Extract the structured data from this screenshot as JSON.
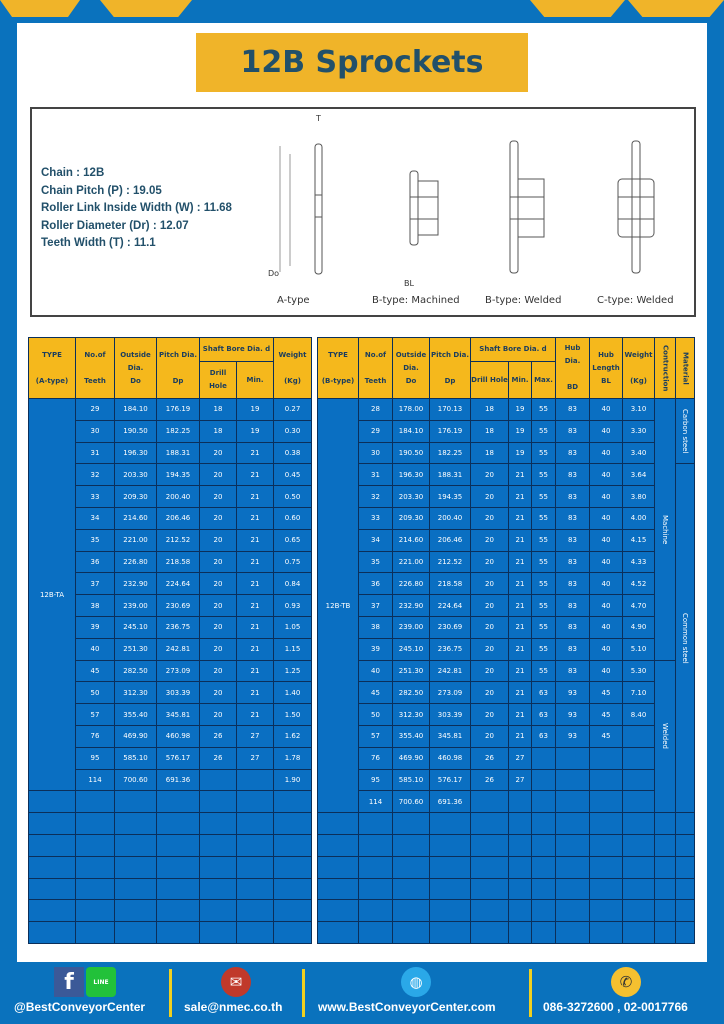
{
  "title": "12B Sprockets",
  "specs": [
    "Chain  :  12B",
    "Chain Pitch (P)  :  19.05",
    "Roller Link Inside Width (W) : 11.68",
    "Roller Diameter (Dr)  : 12.07",
    "Teeth Width (T)  :  11.1"
  ],
  "diagram_labels": [
    "A-type",
    "B-type: Machined",
    "B-type: Welded",
    "C-type: Welded"
  ],
  "dim_labels": {
    "t": "T",
    "do": "Do",
    "dp": "Dp",
    "d": "d",
    "bd": "BD",
    "bl": "BL"
  },
  "tableA": {
    "headers": {
      "type": "TYPE",
      "type_sub": "(A-type)",
      "teeth": "No.of",
      "teeth_sub": "Teeth",
      "do": "Outside",
      "do_sub": "Dia.",
      "do_sub2": "Do",
      "dp": "Pitch Dia.",
      "dp_sub": "Dp",
      "shaft": "Shaft Bore Dia. d",
      "drill": "Drill Hole",
      "min": "Min.",
      "weight": "Weight",
      "weight_sub": "(Kg)"
    },
    "type_value": "12B-TA",
    "rows": [
      [
        "29",
        "184.10",
        "176.19",
        "18",
        "19",
        "0.27"
      ],
      [
        "30",
        "190.50",
        "182.25",
        "18",
        "19",
        "0.30"
      ],
      [
        "31",
        "196.30",
        "188.31",
        "20",
        "21",
        "0.38"
      ],
      [
        "32",
        "203.30",
        "194.35",
        "20",
        "21",
        "0.45"
      ],
      [
        "33",
        "209.30",
        "200.40",
        "20",
        "21",
        "0.50"
      ],
      [
        "34",
        "214.60",
        "206.46",
        "20",
        "21",
        "0.60"
      ],
      [
        "35",
        "221.00",
        "212.52",
        "20",
        "21",
        "0.65"
      ],
      [
        "36",
        "226.80",
        "218.58",
        "20",
        "21",
        "0.75"
      ],
      [
        "37",
        "232.90",
        "224.64",
        "20",
        "21",
        "0.84"
      ],
      [
        "38",
        "239.00",
        "230.69",
        "20",
        "21",
        "0.93"
      ],
      [
        "39",
        "245.10",
        "236.75",
        "20",
        "21",
        "1.05"
      ],
      [
        "40",
        "251.30",
        "242.81",
        "20",
        "21",
        "1.15"
      ],
      [
        "45",
        "282.50",
        "273.09",
        "20",
        "21",
        "1.25"
      ],
      [
        "50",
        "312.30",
        "303.39",
        "20",
        "21",
        "1.40"
      ],
      [
        "57",
        "355.40",
        "345.81",
        "20",
        "21",
        "1.50"
      ],
      [
        "76",
        "469.90",
        "460.98",
        "26",
        "27",
        "1.62"
      ],
      [
        "95",
        "585.10",
        "576.17",
        "26",
        "27",
        "1.78"
      ],
      [
        "114",
        "700.60",
        "691.36",
        "",
        "",
        "1.90"
      ]
    ]
  },
  "tableB": {
    "headers": {
      "type": "TYPE",
      "type_sub": "(B-type)",
      "teeth": "No.of",
      "teeth_sub": "Teeth",
      "do": "Outside",
      "do_sub": "Dia.",
      "do_sub2": "Do",
      "dp": "Pitch Dia.",
      "dp_sub": "Dp",
      "shaft": "Shaft Bore Dia. d",
      "drill": "Drill Hole",
      "min": "Min.",
      "max": "Max.",
      "bd": "Hub Dia.",
      "bd_sub": "BD",
      "bl": "Hub",
      "bl_sub": "Length",
      "bl_sub2": "BL",
      "weight": "Weight",
      "weight_sub": "(Kg)",
      "construction": "Contruction",
      "material": "Material"
    },
    "type_value": "12B-TB",
    "construction": [
      {
        "label": "Machine",
        "rows": 12
      },
      {
        "label": "Welded",
        "rows": 7
      }
    ],
    "material": [
      {
        "label": "Carbon steel",
        "rows": 3
      },
      {
        "label": "Common steel",
        "rows": 16
      }
    ],
    "rows": [
      [
        "28",
        "178.00",
        "170.13",
        "18",
        "19",
        "55",
        "83",
        "40",
        "3.10"
      ],
      [
        "29",
        "184.10",
        "176.19",
        "18",
        "19",
        "55",
        "83",
        "40",
        "3.30"
      ],
      [
        "30",
        "190.50",
        "182.25",
        "18",
        "19",
        "55",
        "83",
        "40",
        "3.40"
      ],
      [
        "31",
        "196.30",
        "188.31",
        "20",
        "21",
        "55",
        "83",
        "40",
        "3.64"
      ],
      [
        "32",
        "203.30",
        "194.35",
        "20",
        "21",
        "55",
        "83",
        "40",
        "3.80"
      ],
      [
        "33",
        "209.30",
        "200.40",
        "20",
        "21",
        "55",
        "83",
        "40",
        "4.00"
      ],
      [
        "34",
        "214.60",
        "206.46",
        "20",
        "21",
        "55",
        "83",
        "40",
        "4.15"
      ],
      [
        "35",
        "221.00",
        "212.52",
        "20",
        "21",
        "55",
        "83",
        "40",
        "4.33"
      ],
      [
        "36",
        "226.80",
        "218.58",
        "20",
        "21",
        "55",
        "83",
        "40",
        "4.52"
      ],
      [
        "37",
        "232.90",
        "224.64",
        "20",
        "21",
        "55",
        "83",
        "40",
        "4.70"
      ],
      [
        "38",
        "239.00",
        "230.69",
        "20",
        "21",
        "55",
        "83",
        "40",
        "4.90"
      ],
      [
        "39",
        "245.10",
        "236.75",
        "20",
        "21",
        "55",
        "83",
        "40",
        "5.10"
      ],
      [
        "40",
        "251.30",
        "242.81",
        "20",
        "21",
        "55",
        "83",
        "40",
        "5.30"
      ],
      [
        "45",
        "282.50",
        "273.09",
        "20",
        "21",
        "63",
        "93",
        "45",
        "7.10"
      ],
      [
        "50",
        "312.30",
        "303.39",
        "20",
        "21",
        "63",
        "93",
        "45",
        "8.40"
      ],
      [
        "57",
        "355.40",
        "345.81",
        "20",
        "21",
        "63",
        "93",
        "45",
        ""
      ],
      [
        "76",
        "469.90",
        "460.98",
        "26",
        "27",
        "",
        "",
        "",
        ""
      ],
      [
        "95",
        "585.10",
        "576.17",
        "26",
        "27",
        "",
        "",
        "",
        ""
      ],
      [
        "114",
        "700.60",
        "691.36",
        "",
        "",
        "",
        "",
        "",
        ""
      ]
    ]
  },
  "footer": {
    "social": "@BestConveyorCenter",
    "line_icon": "LINE",
    "email": "sale@nmec.co.th",
    "web": "www.BestConveyorCenter.com",
    "phone": "086-3272600 , 02-0017766"
  },
  "colors": {
    "blue": "#0a72bd",
    "yellow": "#f0b429",
    "text": "#22506a"
  }
}
